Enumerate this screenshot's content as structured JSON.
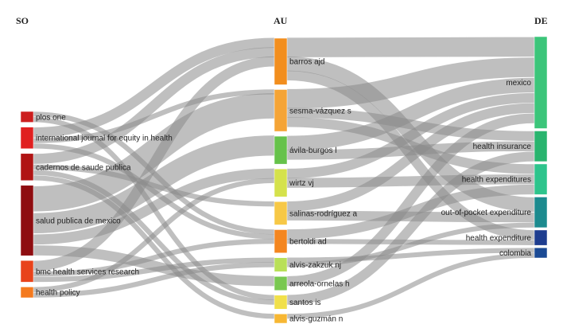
{
  "columns": {
    "so": "SO",
    "au": "AU",
    "de": "DE"
  },
  "nodes": [
    {
      "id": "so0",
      "col": "so",
      "label": "plos one",
      "weight": 2,
      "color": "#cc1f1f"
    },
    {
      "id": "so1",
      "col": "so",
      "label": "international journal for equity in health",
      "weight": 4,
      "color": "#e02020"
    },
    {
      "id": "so2",
      "col": "so",
      "label": "cadernos de saude publica",
      "weight": 5,
      "color": "#b01414"
    },
    {
      "id": "so3",
      "col": "so",
      "label": "salud publica de mexico",
      "weight": 13,
      "color": "#8e0d10"
    },
    {
      "id": "so4",
      "col": "so",
      "label": "bmc health services research",
      "weight": 4,
      "color": "#e8431b"
    },
    {
      "id": "so5",
      "col": "so",
      "label": "health policy",
      "weight": 2,
      "color": "#f47a1f"
    },
    {
      "id": "au0",
      "col": "au",
      "label": "barros ajd",
      "weight": 10,
      "color": "#f28e1e"
    },
    {
      "id": "au1",
      "col": "au",
      "label": "sesma-vázquez s",
      "weight": 9,
      "color": "#f5a436"
    },
    {
      "id": "au2",
      "col": "au",
      "label": "ávila-burgos l",
      "weight": 6,
      "color": "#66c24a"
    },
    {
      "id": "au3",
      "col": "au",
      "label": "wirtz vj",
      "weight": 6,
      "color": "#d5e24c"
    },
    {
      "id": "au4",
      "col": "au",
      "label": "salinas-rodríguez a",
      "weight": 5,
      "color": "#f7c846"
    },
    {
      "id": "au5",
      "col": "au",
      "label": "bertoldi ad",
      "weight": 5,
      "color": "#f4861f"
    },
    {
      "id": "au6",
      "col": "au",
      "label": "alvis-zakzuk nj",
      "weight": 3,
      "color": "#b9e058"
    },
    {
      "id": "au7",
      "col": "au",
      "label": "arreola-ornelas h",
      "weight": 3,
      "color": "#79c850"
    },
    {
      "id": "au8",
      "col": "au",
      "label": "santos is",
      "weight": 3,
      "color": "#f1e04a"
    },
    {
      "id": "au9",
      "col": "au",
      "label": "alvis-guzmán n",
      "weight": 2,
      "color": "#f7b733"
    },
    {
      "id": "de0",
      "col": "de",
      "label": "mexico",
      "weight": 18,
      "color": "#3cc57a"
    },
    {
      "id": "de1",
      "col": "de",
      "label": "health insurance",
      "weight": 6,
      "color": "#29b46e"
    },
    {
      "id": "de2",
      "col": "de",
      "label": "health expenditures",
      "weight": 6,
      "color": "#2ec48c"
    },
    {
      "id": "de3",
      "col": "de",
      "label": "out-of-pocket expenditure",
      "weight": 6,
      "color": "#1c8a8e"
    },
    {
      "id": "de4",
      "col": "de",
      "label": "health expenditure",
      "weight": 3,
      "color": "#1e3d8f"
    },
    {
      "id": "de5",
      "col": "de",
      "label": "colombia",
      "weight": 2,
      "color": "#1b4a94"
    }
  ],
  "links": [
    {
      "source": "so0",
      "target": "au5",
      "value": 1
    },
    {
      "source": "so0",
      "target": "au8",
      "value": 1
    },
    {
      "source": "so1",
      "target": "au0",
      "value": 2
    },
    {
      "source": "so1",
      "target": "au1",
      "value": 1
    },
    {
      "source": "so1",
      "target": "au5",
      "value": 1
    },
    {
      "source": "so2",
      "target": "au0",
      "value": 2
    },
    {
      "source": "so2",
      "target": "au4",
      "value": 1
    },
    {
      "source": "so2",
      "target": "au8",
      "value": 1
    },
    {
      "source": "so2",
      "target": "au9",
      "value": 1
    },
    {
      "source": "so3",
      "target": "au1",
      "value": 5
    },
    {
      "source": "so3",
      "target": "au2",
      "value": 4
    },
    {
      "source": "so3",
      "target": "au3",
      "value": 2
    },
    {
      "source": "so3",
      "target": "au7",
      "value": 2
    },
    {
      "source": "so4",
      "target": "au0",
      "value": 2
    },
    {
      "source": "so4",
      "target": "au5",
      "value": 1
    },
    {
      "source": "so4",
      "target": "au6",
      "value": 1
    },
    {
      "source": "so5",
      "target": "au3",
      "value": 1
    },
    {
      "source": "so5",
      "target": "au6",
      "value": 1
    },
    {
      "source": "au0",
      "target": "de0",
      "value": 4
    },
    {
      "source": "au0",
      "target": "de3",
      "value": 3
    },
    {
      "source": "au0",
      "target": "de4",
      "value": 2
    },
    {
      "source": "au1",
      "target": "de0",
      "value": 4
    },
    {
      "source": "au1",
      "target": "de1",
      "value": 2
    },
    {
      "source": "au1",
      "target": "de2",
      "value": 2
    },
    {
      "source": "au2",
      "target": "de0",
      "value": 3
    },
    {
      "source": "au2",
      "target": "de1",
      "value": 2
    },
    {
      "source": "au3",
      "target": "de0",
      "value": 2
    },
    {
      "source": "au3",
      "target": "de2",
      "value": 2
    },
    {
      "source": "au4",
      "target": "de0",
      "value": 2
    },
    {
      "source": "au4",
      "target": "de3",
      "value": 2
    },
    {
      "source": "au5",
      "target": "de2",
      "value": 2
    },
    {
      "source": "au5",
      "target": "de4",
      "value": 1
    },
    {
      "source": "au6",
      "target": "de5",
      "value": 1
    },
    {
      "source": "au6",
      "target": "de3",
      "value": 1
    },
    {
      "source": "au7",
      "target": "de0",
      "value": 2
    },
    {
      "source": "au8",
      "target": "de1",
      "value": 2
    },
    {
      "source": "au9",
      "target": "de5",
      "value": 1
    }
  ]
}
